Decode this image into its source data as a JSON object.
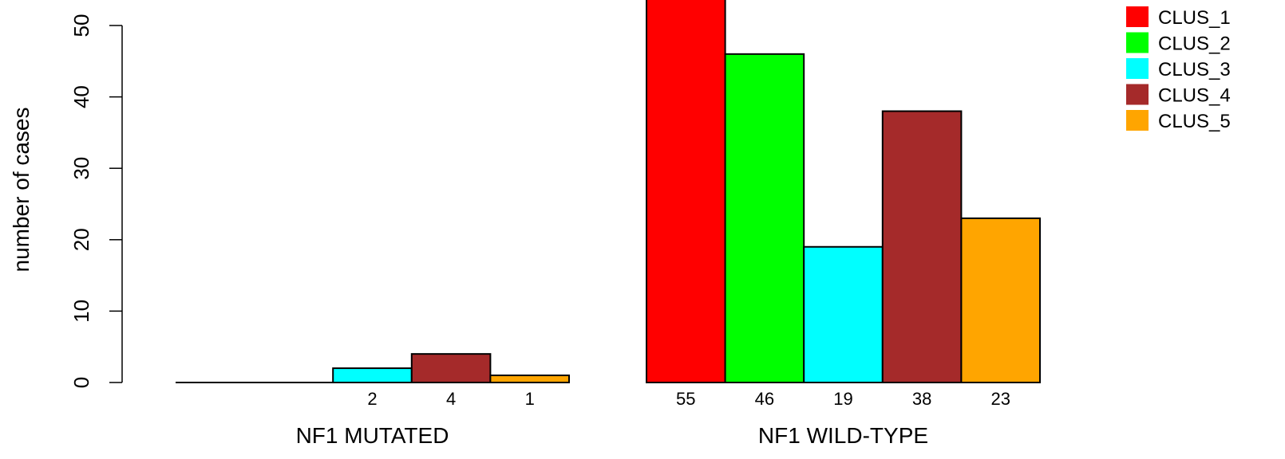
{
  "chart_data": {
    "type": "bar",
    "ylabel": "number of cases",
    "ylim": [
      0,
      50
    ],
    "yticks": [
      "0",
      "10",
      "20",
      "30",
      "40",
      "50"
    ],
    "grid": false,
    "legend_position": "top-right",
    "categories": [
      "CLUS_1",
      "CLUS_2",
      "CLUS_3",
      "CLUS_4",
      "CLUS_5"
    ],
    "colors": [
      "#ff0000",
      "#00ff00",
      "#00ffff",
      "#a52a2a",
      "#ffa500"
    ],
    "groups": [
      {
        "label": "NF1 MUTATED",
        "values": [
          0,
          0,
          2,
          4,
          1
        ],
        "value_labels": [
          "",
          "",
          "2",
          "4",
          "1"
        ]
      },
      {
        "label": "NF1 WILD-TYPE",
        "values": [
          55,
          46,
          19,
          38,
          23
        ],
        "value_labels": [
          "55",
          "46",
          "19",
          "38",
          "23"
        ]
      }
    ]
  }
}
